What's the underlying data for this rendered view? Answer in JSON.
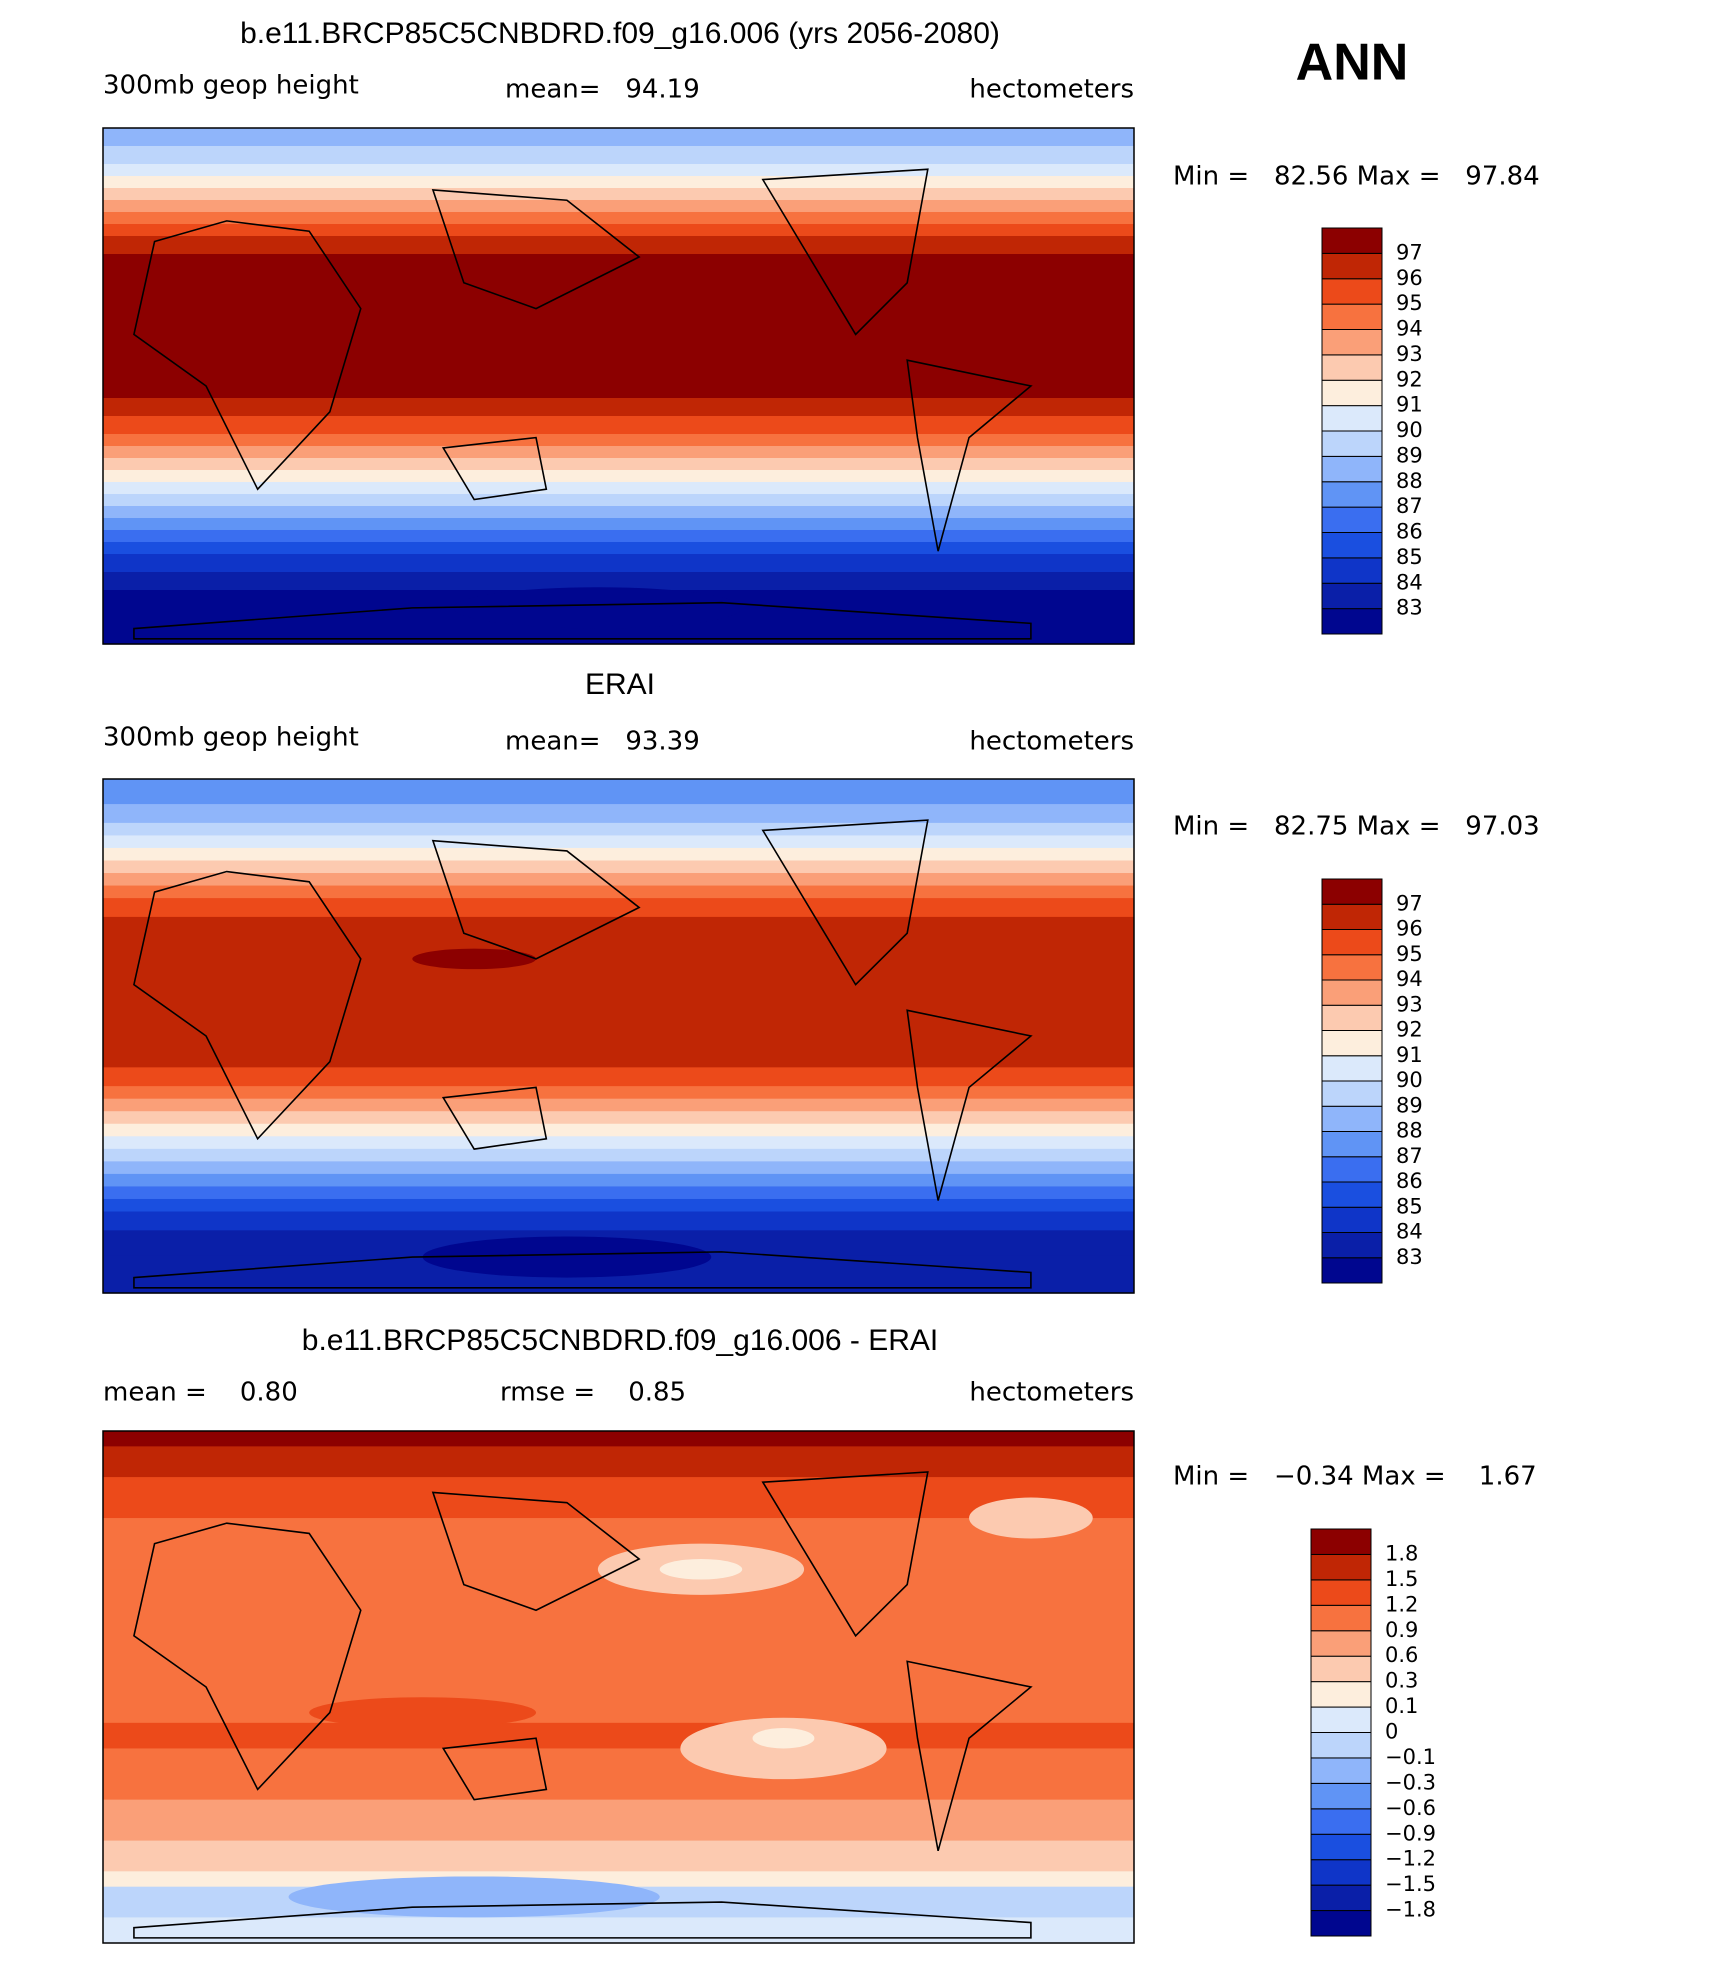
{
  "figure": {
    "season": "ANN",
    "panels": [
      {
        "title": "b.e11.BRCP85C5CNBDRD.f09_g16.006 (yrs 2056-2080)",
        "field": "300mb geop height",
        "stats": [
          "mean=   94.19"
        ],
        "units": "hectometers",
        "range": "Min =   82.56 Max =   97.84",
        "colorbar": {
          "labels": [
            "83",
            "84",
            "85",
            "86",
            "87",
            "88",
            "89",
            "90",
            "91",
            "92",
            "93",
            "94",
            "95",
            "96",
            "97"
          ],
          "colors": [
            "#00068f",
            "#0a1fa8",
            "#0f35c8",
            "#1a4fe0",
            "#3a6ef0",
            "#6094f5",
            "#8fb5fa",
            "#bcd5fb",
            "#dbe9fb",
            "#fdeedd",
            "#fccab0",
            "#fa9f78",
            "#f7723f",
            "#ec4a1a",
            "#c02605",
            "#8c0000"
          ]
        }
      },
      {
        "title": "ERAI",
        "field": "300mb geop height",
        "stats": [
          "mean=   93.39"
        ],
        "units": "hectometers",
        "range": "Min =   82.75 Max =   97.03",
        "colorbar": {
          "labels": [
            "83",
            "84",
            "85",
            "86",
            "87",
            "88",
            "89",
            "90",
            "91",
            "92",
            "93",
            "94",
            "95",
            "96",
            "97"
          ],
          "colors": [
            "#00068f",
            "#0a1fa8",
            "#0f35c8",
            "#1a4fe0",
            "#3a6ef0",
            "#6094f5",
            "#8fb5fa",
            "#bcd5fb",
            "#dbe9fb",
            "#fdeedd",
            "#fccab0",
            "#fa9f78",
            "#f7723f",
            "#ec4a1a",
            "#c02605",
            "#8c0000"
          ]
        }
      },
      {
        "title": "b.e11.BRCP85C5CNBDRD.f09_g16.006 - ERAI",
        "stats": [
          "mean =    0.80",
          "rmse =    0.85"
        ],
        "units": "hectometers",
        "range": "Min =   −0.34 Max =    1.67",
        "colorbar": {
          "labels": [
            "−1.8",
            "−1.5",
            "−1.2",
            "−0.9",
            "−0.6",
            "−0.3",
            "−0.1",
            "0",
            "0.1",
            "0.3",
            "0.6",
            "0.9",
            "1.2",
            "1.5",
            "1.8"
          ],
          "colors": [
            "#00068f",
            "#0a1fa8",
            "#0f35c8",
            "#1a4fe0",
            "#3a6ef0",
            "#6094f5",
            "#8fb5fa",
            "#bcd5fb",
            "#dbe9fb",
            "#fdeedd",
            "#fccab0",
            "#fa9f78",
            "#f7723f",
            "#ec4a1a",
            "#c02605",
            "#8c0000"
          ]
        }
      }
    ]
  }
}
